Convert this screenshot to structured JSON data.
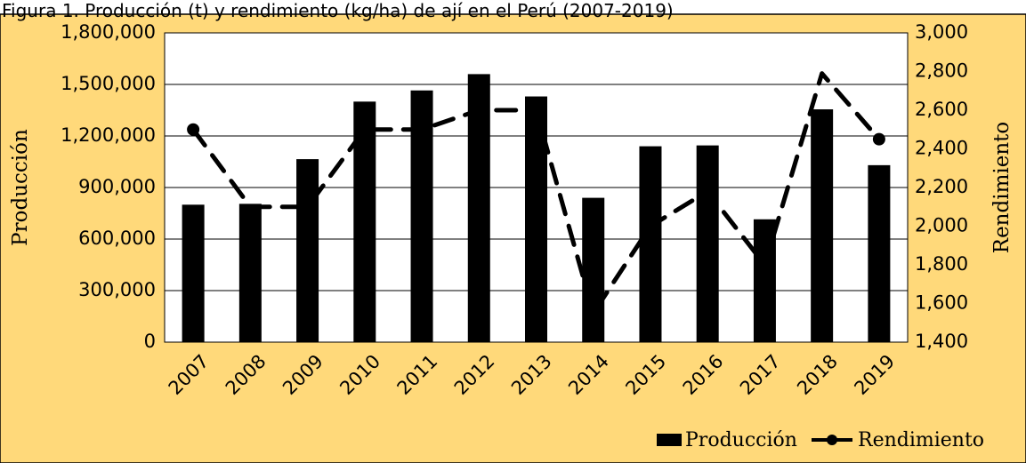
{
  "caption": "Figura 1. Producción (t) y rendimiento (kg/ha) de ají en el Perú (2007-2019)",
  "colors": {
    "background": "#FFD97A",
    "plot_area": "#FFFFFF",
    "bars": "#000000",
    "line": "#000000"
  },
  "chart_data": {
    "type": "bar",
    "categories": [
      "2007",
      "2008",
      "2009",
      "2010",
      "2011",
      "2012",
      "2013",
      "2014",
      "2015",
      "2016",
      "2017",
      "2018",
      "2019"
    ],
    "series": [
      {
        "name": "Producción",
        "type": "bar",
        "axis": "left",
        "values": [
          800000,
          805000,
          1065000,
          1400000,
          1465000,
          1560000,
          1430000,
          840000,
          1140000,
          1145000,
          715000,
          1355000,
          1030000
        ]
      },
      {
        "name": "Rendimiento",
        "type": "line",
        "axis": "right",
        "line_style": "dashed",
        "marker": "circle",
        "values": [
          2500,
          2100,
          2100,
          2500,
          2500,
          2600,
          2600,
          1550,
          2000,
          2180,
          1800,
          2790,
          2450
        ]
      }
    ],
    "ylabel": "Producción",
    "y2label": "Rendimiento",
    "ylim": [
      0,
      1800000
    ],
    "y2lim": [
      1400,
      3000
    ],
    "yticks": [
      "0",
      "300,000",
      "600,000",
      "900,000",
      "1,200,000",
      "1,500,000",
      "1,800,000"
    ],
    "y2ticks": [
      "1,400",
      "1,600",
      "1,800",
      "2,000",
      "2,200",
      "2,400",
      "2,600",
      "2,800",
      "3,000"
    ],
    "grid": true,
    "legend": {
      "position": "bottom-right",
      "entries": [
        "Producción",
        "Rendimiento"
      ]
    }
  }
}
